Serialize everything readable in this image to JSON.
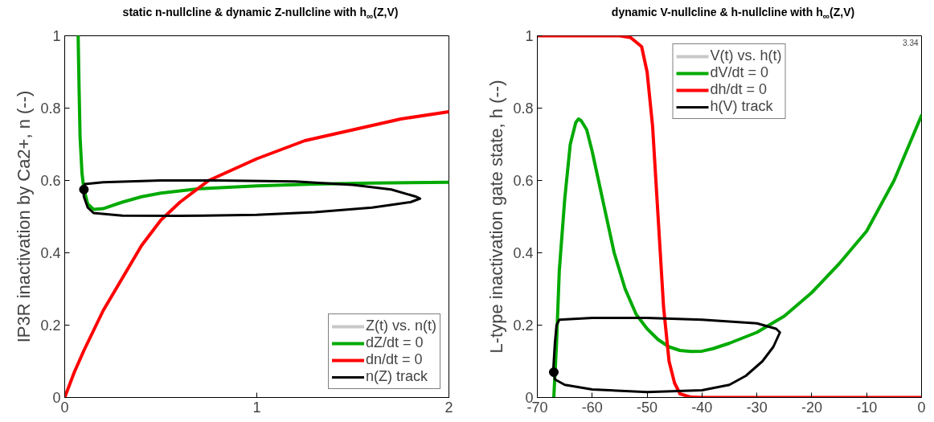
{
  "chart_data": [
    {
      "type": "line",
      "title": "static n-nullcline & dynamic Z-nullcline with h$_{∞}$(Z,V)",
      "ylabel": "IP3R inactivation by Ca2+, n (--)",
      "xlim": [
        0,
        2
      ],
      "ylim": [
        0,
        1
      ],
      "xticks": [
        0,
        1,
        2
      ],
      "yticks": [
        0,
        0.2,
        0.4,
        0.6,
        0.8,
        1
      ],
      "grid": false,
      "legend": "bottom right",
      "series": [
        {
          "name": "Z(t) vs. n(t)",
          "color": "#c8c8c8"
        },
        {
          "name": "dZ/dt = 0",
          "color": "#00aa00",
          "x": [
            0.07,
            0.075,
            0.08,
            0.09,
            0.1,
            0.12,
            0.15,
            0.2,
            0.3,
            0.4,
            0.5,
            0.7,
            1.0,
            1.3,
            1.6,
            2.0
          ],
          "values": [
            1.0,
            0.85,
            0.72,
            0.62,
            0.575,
            0.535,
            0.52,
            0.522,
            0.54,
            0.555,
            0.565,
            0.577,
            0.585,
            0.59,
            0.593,
            0.595
          ]
        },
        {
          "name": "dn/dt = 0",
          "color": "#ff0000",
          "x": [
            0,
            0.05,
            0.1,
            0.2,
            0.3,
            0.4,
            0.5,
            0.6,
            0.75,
            1.0,
            1.25,
            1.5,
            1.75,
            2.0
          ],
          "values": [
            0,
            0.07,
            0.13,
            0.24,
            0.33,
            0.42,
            0.49,
            0.54,
            0.6,
            0.66,
            0.71,
            0.74,
            0.77,
            0.79
          ]
        },
        {
          "name": "n(Z) track",
          "color": "#000000",
          "x": [
            0.1,
            0.105,
            0.2,
            0.5,
            0.8,
            1.2,
            1.5,
            1.7,
            1.83,
            1.85,
            1.8,
            1.6,
            1.3,
            1.0,
            0.6,
            0.3,
            0.15,
            0.12,
            0.1,
            0.098
          ],
          "values": [
            0.575,
            0.59,
            0.595,
            0.6,
            0.6,
            0.597,
            0.588,
            0.575,
            0.555,
            0.55,
            0.54,
            0.525,
            0.512,
            0.505,
            0.502,
            0.503,
            0.51,
            0.525,
            0.555,
            0.568
          ]
        },
        {
          "type": "scatter",
          "marker": "circle",
          "color": "#000000",
          "x": [
            0.1
          ],
          "values": [
            0.575
          ]
        }
      ]
    },
    {
      "type": "line",
      "title": "dynamic V-nullcline & h-nullcline with h$_{∞}$(Z,V)",
      "ylabel": "L-type inactivation gate state, h (--)",
      "xlim": [
        -70,
        0
      ],
      "ylim": [
        0,
        1
      ],
      "xticks": [
        -70,
        -60,
        -50,
        -40,
        -30,
        -20,
        -10,
        0
      ],
      "yticks": [
        0,
        0.2,
        0.4,
        0.6,
        0.8,
        1
      ],
      "grid": false,
      "legend": "top",
      "annotations": [
        "3.34"
      ],
      "series": [
        {
          "name": "V(t) vs. h(t)",
          "color": "#c8c8c8"
        },
        {
          "name": "dV/dt = 0",
          "color": "#00aa00",
          "x": [
            -67,
            -66.5,
            -66,
            -65,
            -64,
            -63,
            -62.5,
            -62,
            -61,
            -60,
            -58,
            -56,
            -54,
            -52,
            -50,
            -48,
            -46,
            -44,
            -42,
            -40,
            -38,
            -35,
            -30,
            -25,
            -20,
            -15,
            -10,
            -5,
            0
          ],
          "values": [
            0,
            0.15,
            0.35,
            0.55,
            0.7,
            0.76,
            0.77,
            0.765,
            0.74,
            0.68,
            0.54,
            0.4,
            0.3,
            0.23,
            0.19,
            0.16,
            0.14,
            0.13,
            0.127,
            0.128,
            0.135,
            0.15,
            0.18,
            0.225,
            0.29,
            0.37,
            0.46,
            0.6,
            0.78
          ]
        },
        {
          "name": "dh/dt = 0",
          "color": "#ff0000",
          "x": [
            -70,
            -55,
            -53,
            -51,
            -50,
            -49,
            -48,
            -47,
            -46,
            -45,
            -44,
            -42,
            -40,
            0
          ],
          "values": [
            1,
            1,
            0.995,
            0.97,
            0.9,
            0.75,
            0.5,
            0.25,
            0.1,
            0.04,
            0.01,
            0.001,
            0,
            0
          ]
        },
        {
          "name": "h(V) track",
          "color": "#000000",
          "x": [
            -67,
            -66.8,
            -65,
            -60,
            -50,
            -40,
            -35,
            -32,
            -29,
            -27,
            -25.8,
            -26.5,
            -30,
            -40,
            -50,
            -60,
            -66,
            -66.5,
            -66.8,
            -67,
            -67.1
          ],
          "values": [
            0.07,
            0.05,
            0.035,
            0.022,
            0.015,
            0.02,
            0.035,
            0.06,
            0.1,
            0.14,
            0.18,
            0.19,
            0.205,
            0.215,
            0.22,
            0.22,
            0.215,
            0.2,
            0.15,
            0.1,
            0.075
          ]
        },
        {
          "type": "scatter",
          "marker": "circle",
          "color": "#000000",
          "x": [
            -67
          ],
          "values": [
            0.07
          ]
        }
      ]
    }
  ]
}
